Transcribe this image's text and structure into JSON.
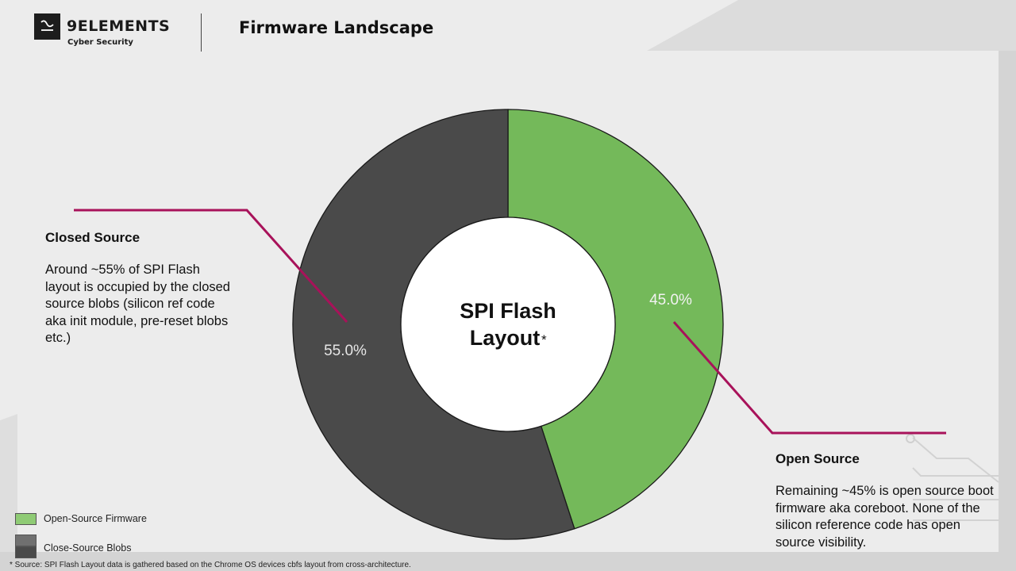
{
  "header": {
    "brand_name": "9ELEMENTS",
    "brand_sub": "Cyber Security",
    "page_title": "Firmware Landscape"
  },
  "colors": {
    "open_source": "#74b95a",
    "closed_source": "#4a4a4a",
    "callout_line": "#a8125a"
  },
  "chart_data": {
    "type": "pie",
    "donut": true,
    "center_title_line1": "SPI Flash",
    "center_title_line2": "Layout",
    "center_title_mark": "*",
    "slices": [
      {
        "label": "Open-Source Firmware",
        "value": 45.0,
        "display": "45.0%",
        "color": "#74b95a"
      },
      {
        "label": "Close-Source Blobs",
        "value": 55.0,
        "display": "55.0%",
        "color": "#4a4a4a"
      }
    ],
    "start_angle_deg": 0,
    "direction": "clockwise"
  },
  "annotations": {
    "closed": {
      "title": "Closed Source",
      "body": "Around ~55% of SPI Flash layout is occupied by the closed source blobs (silicon ref code aka init module, pre-reset blobs etc.)"
    },
    "open": {
      "title": "Open Source",
      "body": "Remaining ~45% is open source boot firmware aka coreboot. None of the silicon reference code has open source visibility."
    }
  },
  "legend": {
    "items": [
      {
        "label": "Open-Source Firmware",
        "color": "#8fcb75"
      },
      {
        "label": "Close-Source Blobs",
        "color": "#707070"
      }
    ]
  },
  "footnote": "* Source: SPI Flash Layout data is gathered based on the Chrome OS devices cbfs layout from cross-architecture."
}
